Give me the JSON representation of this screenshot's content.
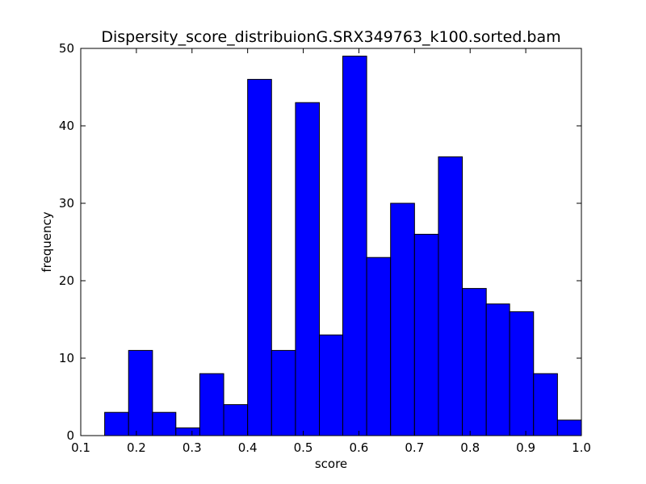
{
  "chart_data": {
    "type": "bar",
    "title": "Dispersity_score_distribuionG.SRX349763_k100.sorted.bam",
    "xlabel": "score",
    "ylabel": "frequency",
    "xlim": [
      0.1,
      1.0
    ],
    "ylim": [
      0,
      50
    ],
    "xticks": [
      "0.1",
      "0.2",
      "0.3",
      "0.4",
      "0.5",
      "0.6",
      "0.7",
      "0.8",
      "0.9",
      "1.0"
    ],
    "yticks": [
      "0",
      "10",
      "20",
      "30",
      "40",
      "50"
    ],
    "bin_edges": [
      0.143,
      0.186,
      0.229,
      0.271,
      0.314,
      0.357,
      0.4,
      0.443,
      0.486,
      0.529,
      0.571,
      0.614,
      0.657,
      0.7,
      0.743,
      0.786,
      0.829,
      0.871,
      0.914,
      0.957,
      1.0
    ],
    "values": [
      3,
      11,
      3,
      1,
      8,
      4,
      46,
      11,
      43,
      13,
      49,
      23,
      30,
      26,
      36,
      19,
      17,
      16,
      8,
      2
    ],
    "bar_color": "#0000ff",
    "edge_color": "#000000",
    "grid": false,
    "legend": false
  }
}
